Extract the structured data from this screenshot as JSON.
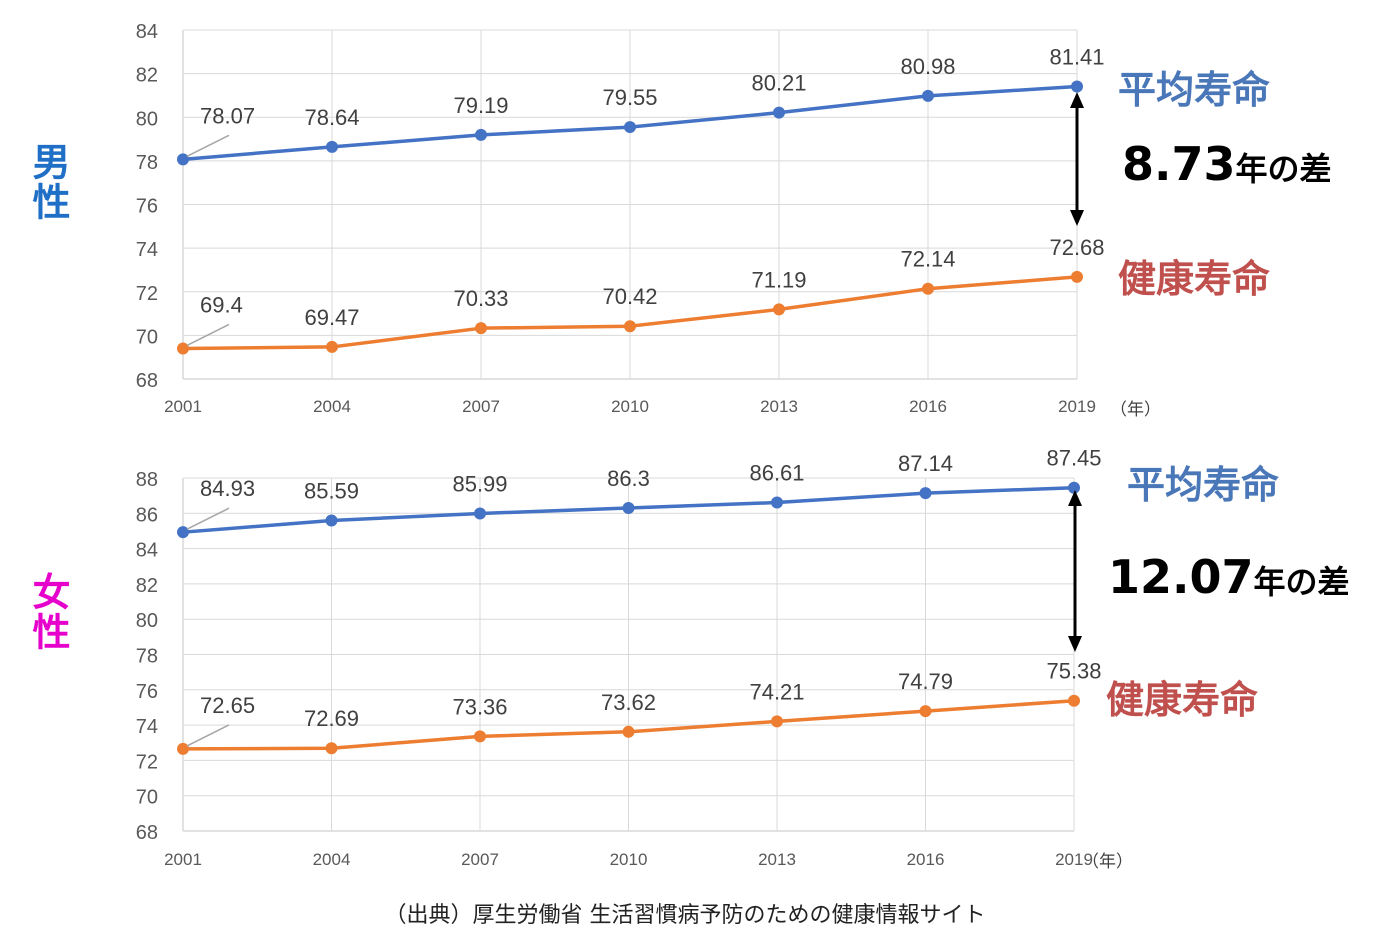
{
  "colors": {
    "avg": "#4472c4",
    "healthy": "#ed7d31",
    "male": "#1f6fc6",
    "female": "#e600cc",
    "avg_label": "#4a77b8",
    "healthy_label": "#c0504d",
    "gap_text": "#000000"
  },
  "chart_data": [
    {
      "type": "line",
      "group_label": "男性",
      "x": [
        "2001",
        "2004",
        "2007",
        "2010",
        "2013",
        "2016",
        "2019"
      ],
      "x_unit": "（年）",
      "ylim": [
        68,
        84
      ],
      "yticks": [
        "68",
        "70",
        "72",
        "74",
        "76",
        "78",
        "80",
        "82",
        "84"
      ],
      "grid": true,
      "series": [
        {
          "name": "平均寿命",
          "values": [
            78.07,
            78.64,
            79.19,
            79.55,
            80.21,
            80.98,
            81.41
          ],
          "labels": [
            "78.07",
            "78.64",
            "79.19",
            "79.55",
            "80.21",
            "80.98",
            "81.41"
          ]
        },
        {
          "name": "健康寿命",
          "values": [
            69.4,
            69.47,
            70.33,
            70.42,
            71.19,
            72.14,
            72.68
          ],
          "labels": [
            "69.4",
            "69.47",
            "70.33",
            "70.42",
            "71.19",
            "72.14",
            "72.68"
          ]
        }
      ],
      "gap": {
        "number": "8.73",
        "suffix": "年の差"
      }
    },
    {
      "type": "line",
      "group_label": "女性",
      "x": [
        "2001",
        "2004",
        "2007",
        "2010",
        "2013",
        "2016",
        "2019"
      ],
      "x_unit": "（年）",
      "ylim": [
        68,
        88
      ],
      "yticks": [
        "68",
        "70",
        "72",
        "74",
        "76",
        "78",
        "80",
        "82",
        "84",
        "86",
        "88"
      ],
      "grid": true,
      "series": [
        {
          "name": "平均寿命",
          "values": [
            84.93,
            85.59,
            85.99,
            86.3,
            86.61,
            87.14,
            87.45
          ],
          "labels": [
            "84.93",
            "85.59",
            "85.99",
            "86.3",
            "86.61",
            "87.14",
            "87.45"
          ]
        },
        {
          "name": "健康寿命",
          "values": [
            72.65,
            72.69,
            73.36,
            73.62,
            74.21,
            74.79,
            75.38
          ],
          "labels": [
            "72.65",
            "72.69",
            "73.36",
            "73.62",
            "74.21",
            "74.79",
            "75.38"
          ]
        }
      ],
      "gap": {
        "number": "12.07",
        "suffix": "年の差"
      }
    }
  ],
  "source": "（出典）厚生労働省 生活習慣病予防のための健康情報サイト"
}
